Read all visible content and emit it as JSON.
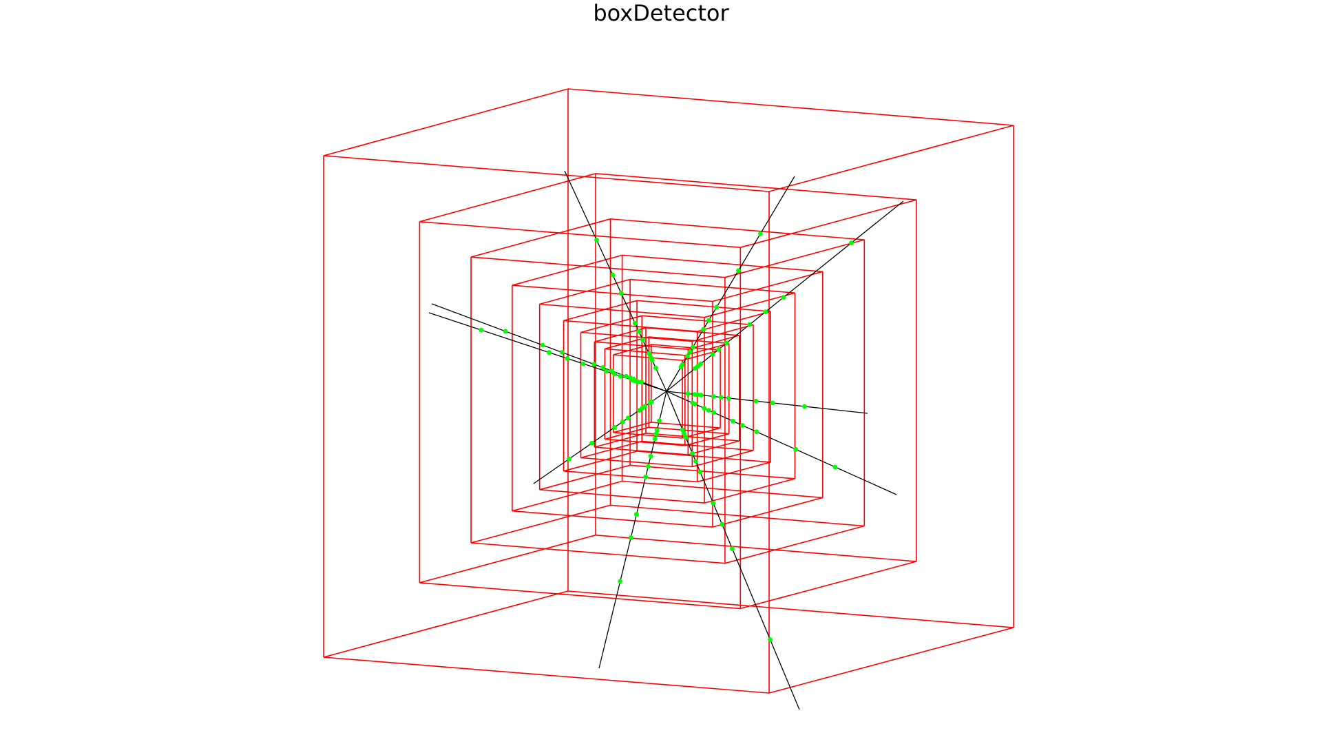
{
  "title": "boxDetector",
  "colors": {
    "box": "#ff0000",
    "track": "#000000",
    "hit": "#00ff00",
    "background": "#ffffff"
  },
  "scene": {
    "type": "nested-box-detector",
    "box_count": 10,
    "track_count": 10
  }
}
